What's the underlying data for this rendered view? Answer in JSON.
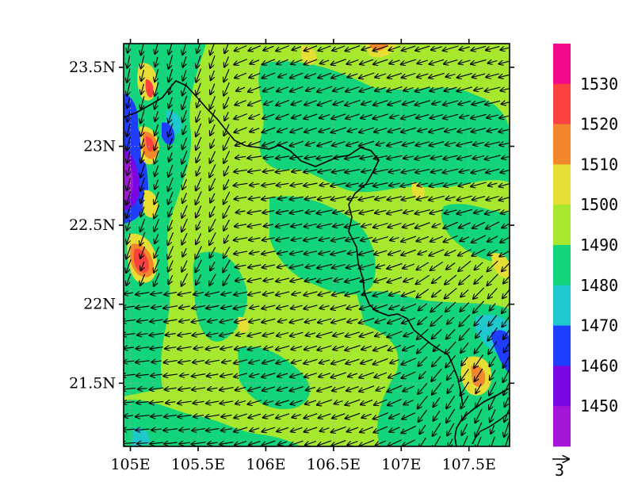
{
  "map": {
    "lat_labels": [
      "23.5N",
      "23N",
      "22.5N",
      "22N",
      "21.5N"
    ],
    "lat_values": [
      23.5,
      23.0,
      22.5,
      22.0,
      21.5
    ],
    "lon_labels": [
      "105E",
      "105.5E",
      "106E",
      "106.5E",
      "107E",
      "107.5E"
    ],
    "lon_values": [
      105.0,
      105.5,
      106.0,
      106.5,
      107.0,
      107.5
    ],
    "lon_range": [
      104.95,
      107.8
    ],
    "lat_range": [
      21.1,
      23.65
    ]
  },
  "colorbar": {
    "levels": [
      "1450",
      "1460",
      "1470",
      "1480",
      "1490",
      "1500",
      "1510",
      "1520",
      "1530"
    ],
    "colors": [
      "#a316d8",
      "#7a06e4",
      "#1f3dff",
      "#1ec8cc",
      "#12d47a",
      "#a6e82e",
      "#e6dd35",
      "#f1862a",
      "#fb4040",
      "#f20a8a"
    ]
  },
  "vector_ref": {
    "label": "3"
  }
}
